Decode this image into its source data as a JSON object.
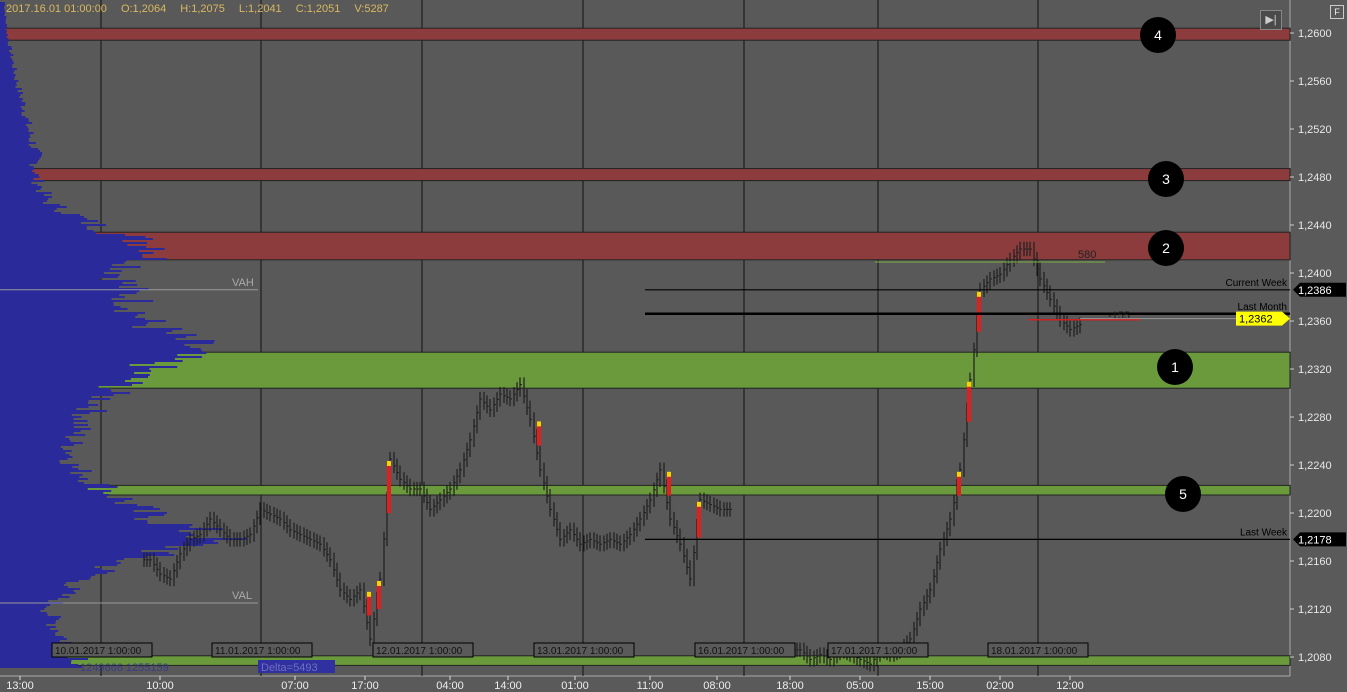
{
  "header": {
    "datetime": "2017.16.01 01:00:00",
    "open": "O:1,2064",
    "high": "H:1,2075",
    "low": "L:1,2041",
    "close": "C:1,2051",
    "volume": "V:5287"
  },
  "buttons": {
    "scroll_end_icon": "skip-to-end-icon",
    "f_label": "F"
  },
  "colors": {
    "background": "#595959",
    "resistance_band": "#8c3c3c",
    "support_band": "#6a9a3c",
    "profile": "#2a2a9a",
    "price_bar": "#1e1e1e",
    "current_price": "#ffff00"
  },
  "chart_data": {
    "type": "bar",
    "subtype": "ohlc-with-volume-profile",
    "y_axis": {
      "range": [
        1.207,
        1.2628
      ],
      "ticks": [
        "1,2600",
        "1,2560",
        "1,2520",
        "1,2480",
        "1,2440",
        "1,2400",
        "1,2360",
        "1,2320",
        "1,2280",
        "1,2240",
        "1,2200",
        "1,2160",
        "1,2120",
        "1,2080"
      ],
      "tick_values": [
        1.26,
        1.256,
        1.252,
        1.248,
        1.244,
        1.24,
        1.236,
        1.232,
        1.228,
        1.224,
        1.22,
        1.216,
        1.212,
        1.208
      ]
    },
    "x_axis": {
      "time_labels": [
        "13:00",
        "10:00",
        "07:00",
        "17:00",
        "04:00",
        "14:00",
        "01:00",
        "11:00",
        "08:00",
        "18:00",
        "05:00",
        "15:00",
        "02:00",
        "12:00"
      ],
      "date_labels": [
        "10.01.2017 1:00:00",
        "11.01.2017 1:00:00",
        "12.01.2017 1:00:00",
        "13.01.2017 1:00:00",
        "16.01.2017 1:00:00",
        "17.01.2017 1:00:00",
        "18.01.2017 1:00:00"
      ]
    },
    "grid": true,
    "zones": [
      {
        "id": "4",
        "type": "resistance",
        "low": 1.2594,
        "high": 1.2604
      },
      {
        "id": "3",
        "type": "resistance",
        "low": 1.2477,
        "high": 1.2487
      },
      {
        "id": "2",
        "type": "resistance",
        "low": 1.2411,
        "high": 1.2434
      },
      {
        "id": "1",
        "type": "support",
        "low": 1.2304,
        "high": 1.2334
      },
      {
        "id": "5",
        "type": "support",
        "low": 1.2215,
        "high": 1.2223
      },
      {
        "id": "",
        "type": "support",
        "low": 1.2073,
        "high": 1.2081
      }
    ],
    "levels": [
      {
        "label": "Current Week",
        "price": 1.2386,
        "price_label": "1,2386",
        "weight": "thin"
      },
      {
        "label": "Last Month",
        "price": 1.2366,
        "price_label": "",
        "weight": "thick"
      },
      {
        "label": "Last Week",
        "price": 1.2178,
        "price_label": "1,2178",
        "weight": "thin"
      }
    ],
    "current_price": {
      "price": 1.2362,
      "label": "1,2362"
    },
    "annotations": [
      {
        "text": "580",
        "price": 1.241
      },
      {
        "text": "-155",
        "price": 1.2361
      }
    ],
    "value_area": {
      "vah_label": "VAH",
      "vah": 1.2386,
      "val_label": "VAL",
      "val": 1.2125
    },
    "profile_stats": {
      "text": "1249666 1255159",
      "delta": "Delta=5493"
    },
    "volume_profile": {
      "start": 1.208,
      "step": 0.002,
      "relative_volume": [
        0.35,
        0.25,
        0.2,
        0.3,
        0.5,
        0.9,
        0.6,
        0.45,
        0.3,
        0.3,
        0.35,
        0.45,
        0.6,
        0.8,
        0.6,
        0.55,
        0.5,
        0.7,
        0.4,
        0.2,
        0.15,
        0.15,
        0.12,
        0.1,
        0.07,
        0.05,
        0.03,
        0.02
      ]
    },
    "price_path": [
      [
        1.2161,
        1.2149,
        1.2145,
        1.2166,
        1.2178,
        1.2182,
        1.2195,
        1.2186,
        1.2178,
        1.2178,
        1.2182,
        1.2203,
        1.2199,
        1.2195,
        1.2186,
        1.2182,
        1.2178,
        1.2174,
        1.2161,
        1.2136,
        1.2128,
        1.2136,
        1.2095,
        1.2145,
        1.2245,
        1.2228,
        1.222,
        1.222,
        1.2203,
        1.2211,
        1.222,
        1.2236,
        1.2261,
        1.2295,
        1.2286,
        1.2299,
        1.2295,
        1.2307,
        1.2278,
        1.2236,
        1.2203,
        1.2178,
        1.2186,
        1.2174,
        1.2178,
        1.2174,
        1.2178,
        1.2174,
        1.2182,
        1.2195,
        1.2211,
        1.2236,
        1.2195,
        1.2174,
        1.2145,
        1.2211,
        1.2207,
        1.2203,
        1.2203
      ],
      [
        1.2086,
        1.2078,
        1.2082,
        1.2078,
        1.2086,
        1.2082,
        1.2078,
        1.2074,
        1.2086,
        1.2082,
        1.2086,
        1.2095,
        1.212,
        1.2136,
        1.217,
        1.2195,
        1.2236,
        1.2311,
        1.2386,
        1.2395,
        1.2399,
        1.2411,
        1.242,
        1.242,
        1.2395,
        1.2378,
        1.2361,
        1.2353,
        1.2357
      ]
    ]
  }
}
